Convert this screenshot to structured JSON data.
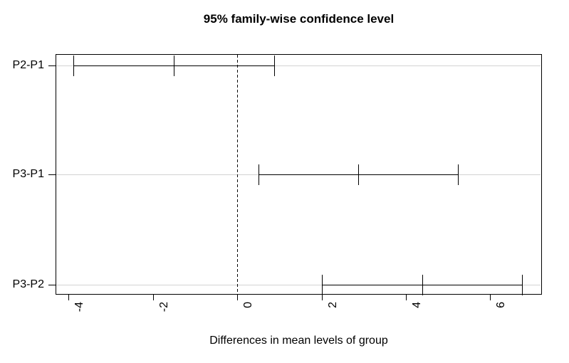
{
  "chart_data": {
    "type": "errorbar",
    "orientation": "horizontal",
    "title": "95% family-wise confidence level",
    "xlabel": "Differences in mean levels of group",
    "ylabel": "",
    "categories": [
      "P2-P1",
      "P3-P1",
      "P3-P2"
    ],
    "intervals": [
      {
        "label": "P2-P1",
        "lwr": -3.88,
        "diff": -1.5,
        "upr": 0.88
      },
      {
        "label": "P3-P1",
        "lwr": 0.51,
        "diff": 2.87,
        "upr": 5.24
      },
      {
        "label": "P3-P2",
        "lwr": 2.01,
        "diff": 4.39,
        "upr": 6.76
      }
    ],
    "x_ticks": [
      -4,
      -2,
      0,
      2,
      4,
      6
    ],
    "xlim": [
      -4.31,
      7.21
    ],
    "zero_line": {
      "x": 0,
      "style": "dashed"
    },
    "row_reference_lines": true,
    "legend": "none",
    "grid": "off",
    "colors": {
      "line": "#000000",
      "reference_line": "#d3d3d3",
      "background": "#ffffff",
      "text": "#000000"
    }
  }
}
